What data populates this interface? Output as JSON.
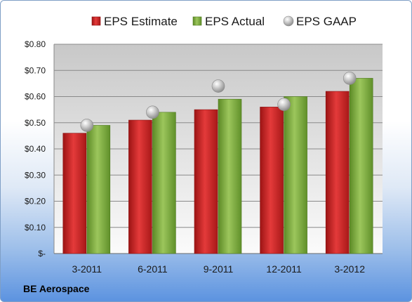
{
  "chart_data": {
    "type": "bar",
    "categories": [
      "3-2011",
      "6-2011",
      "9-2011",
      "12-2011",
      "3-2012"
    ],
    "series": [
      {
        "name": "EPS Estimate",
        "kind": "bar",
        "color": "#c81e1e",
        "values": [
          0.46,
          0.51,
          0.55,
          0.56,
          0.62
        ]
      },
      {
        "name": "EPS Actual",
        "kind": "bar",
        "color": "#7aa63c",
        "values": [
          0.49,
          0.54,
          0.59,
          0.6,
          0.67
        ]
      },
      {
        "name": "EPS GAAP",
        "kind": "marker",
        "color": "#b9b9b9",
        "values": [
          0.49,
          0.54,
          0.64,
          0.57,
          0.67
        ]
      }
    ],
    "ylim": [
      0,
      0.8
    ],
    "yticks": [
      0,
      0.1,
      0.2,
      0.3,
      0.4,
      0.5,
      0.6,
      0.7,
      0.8
    ],
    "ytick_labels": [
      "$-",
      "$0.10",
      "$0.20",
      "$0.30",
      "$0.40",
      "$0.50",
      "$0.60",
      "$0.70",
      "$0.80"
    ],
    "legend_position": "top",
    "grid": true
  },
  "footer": {
    "company": "BE Aerospace"
  }
}
